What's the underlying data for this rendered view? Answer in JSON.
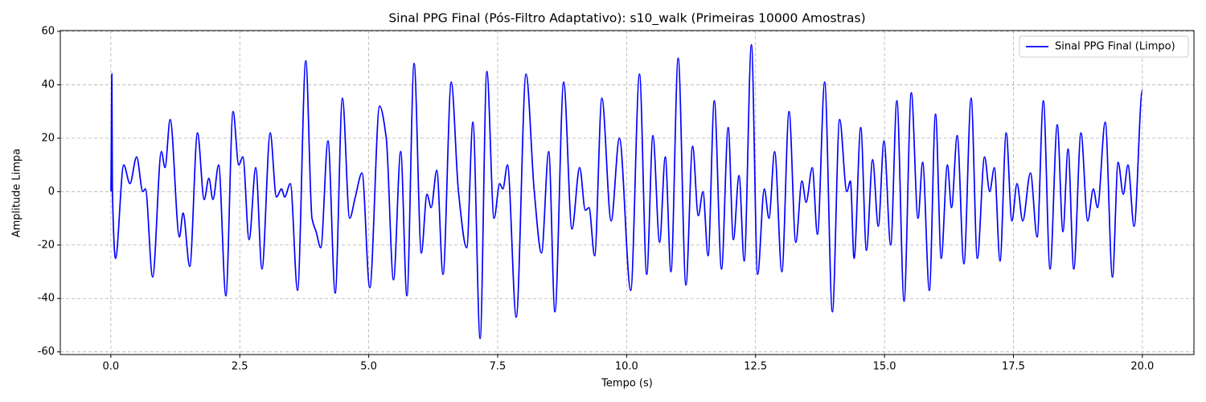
{
  "chart_data": {
    "type": "line",
    "title": "Sinal PPG Final (Pós-Filtro Adaptativo): s10_walk (Primeiras 10000 Amostras)",
    "xlabel": "Tempo (s)",
    "ylabel": "Amplitude Limpa",
    "x": [
      0.0,
      0.02,
      0.03,
      0.09,
      0.25,
      0.37,
      0.5,
      0.62,
      0.67,
      0.81,
      0.98,
      1.05,
      1.15,
      1.33,
      1.4,
      1.53,
      1.68,
      1.81,
      1.9,
      1.98,
      2.09,
      2.23,
      2.37,
      2.48,
      2.56,
      2.68,
      2.81,
      2.93,
      3.09,
      3.21,
      3.31,
      3.37,
      3.48,
      3.62,
      3.78,
      3.9,
      3.98,
      4.07,
      4.21,
      4.35,
      4.49,
      4.63,
      4.74,
      4.87,
      5.02,
      5.21,
      5.34,
      5.48,
      5.62,
      5.74,
      5.88,
      6.02,
      6.13,
      6.21,
      6.32,
      6.44,
      6.6,
      6.74,
      6.9,
      7.02,
      7.16,
      7.29,
      7.43,
      7.54,
      7.6,
      7.69,
      7.86,
      8.05,
      8.21,
      8.35,
      8.49,
      8.61,
      8.78,
      8.94,
      9.09,
      9.2,
      9.27,
      9.38,
      9.52,
      9.7,
      9.86,
      10.08,
      10.25,
      10.39,
      10.51,
      10.64,
      10.75,
      10.86,
      11.0,
      11.15,
      11.28,
      11.39,
      11.48,
      11.58,
      11.7,
      11.84,
      11.97,
      12.07,
      12.18,
      12.28,
      12.42,
      12.54,
      12.67,
      12.76,
      12.87,
      13.01,
      13.15,
      13.28,
      13.4,
      13.48,
      13.6,
      13.7,
      13.84,
      13.99,
      14.13,
      14.27,
      14.34,
      14.41,
      14.54,
      14.65,
      14.77,
      14.88,
      14.99,
      15.12,
      15.24,
      15.38,
      15.52,
      15.65,
      15.74,
      15.87,
      15.99,
      16.1,
      16.22,
      16.3,
      16.41,
      16.54,
      16.68,
      16.8,
      16.94,
      17.04,
      17.13,
      17.24,
      17.36,
      17.47,
      17.57,
      17.68,
      17.83,
      17.96,
      18.08,
      18.21,
      18.35,
      18.46,
      18.56,
      18.67,
      18.81,
      18.94,
      19.05,
      19.13,
      19.28,
      19.42,
      19.53,
      19.63,
      19.72,
      19.84,
      20.0
    ],
    "series": [
      {
        "name": "Sinal PPG Final (Limpo)",
        "color": "#0000ff",
        "values": [
          0,
          44,
          0,
          -25,
          10,
          3,
          13,
          0,
          1,
          -32,
          15,
          9,
          27,
          -17,
          -8,
          -28,
          22,
          -3,
          5,
          -3,
          10,
          -39,
          30,
          10,
          13,
          -18,
          9,
          -29,
          22,
          -2,
          1,
          -2,
          3,
          -37,
          49,
          -10,
          -15,
          -21,
          19,
          -38,
          35,
          -10,
          -2,
          7,
          -36,
          32,
          20,
          -33,
          15,
          -39,
          48,
          -23,
          -1,
          -6,
          8,
          -31,
          41,
          0,
          -21,
          26,
          -55,
          45,
          -10,
          3,
          1,
          10,
          -47,
          44,
          0,
          -23,
          15,
          -45,
          41,
          -14,
          9,
          -7,
          -6,
          -24,
          35,
          -11,
          20,
          -37,
          44,
          -31,
          21,
          -19,
          13,
          -30,
          50,
          -35,
          17,
          -9,
          0,
          -24,
          34,
          -29,
          24,
          -18,
          6,
          -26,
          55,
          -31,
          1,
          -10,
          15,
          -30,
          30,
          -19,
          4,
          -4,
          9,
          -16,
          41,
          -45,
          27,
          0,
          4,
          -25,
          24,
          -22,
          12,
          -13,
          19,
          -20,
          34,
          -41,
          37,
          -10,
          11,
          -37,
          29,
          -25,
          10,
          -6,
          21,
          -27,
          35,
          -25,
          13,
          0,
          9,
          -26,
          22,
          -11,
          3,
          -11,
          7,
          -17,
          34,
          -29,
          25,
          -15,
          16,
          -29,
          22,
          -11,
          1,
          -6,
          26,
          -32,
          11,
          -1,
          10,
          -13,
          38
        ]
      }
    ],
    "xlim": [
      -0.98,
      21.0
    ],
    "ylim": [
      -61,
      60.3
    ],
    "xticks": [
      {
        "value": 0,
        "label": "0.0"
      },
      {
        "value": 2.5,
        "label": "2.5"
      },
      {
        "value": 5,
        "label": "5.0"
      },
      {
        "value": 7.5,
        "label": "7.5"
      },
      {
        "value": 10,
        "label": "10.0"
      },
      {
        "value": 12.5,
        "label": "12.5"
      },
      {
        "value": 15,
        "label": "15.0"
      },
      {
        "value": 17.5,
        "label": "17.5"
      },
      {
        "value": 20,
        "label": "20.0"
      }
    ],
    "yticks": [
      -60,
      -40,
      -20,
      0,
      20,
      40,
      60
    ],
    "grid": true,
    "legend": "upper right"
  }
}
